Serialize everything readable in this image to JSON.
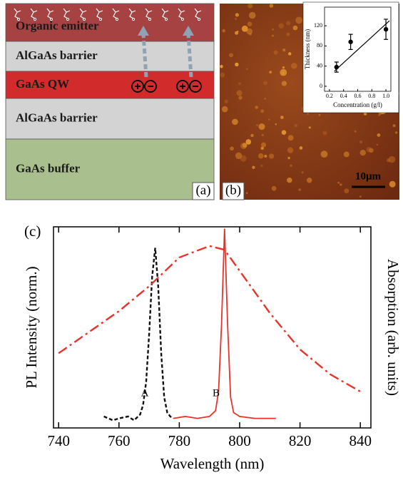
{
  "panel_a": {
    "label": "(a)",
    "layers": [
      {
        "name": "Organic emitter",
        "color": "#a64242"
      },
      {
        "name": "AlGaAs barrier",
        "color": "#d3d3d3"
      },
      {
        "name": "GaAs QW",
        "color": "#d22b2b"
      },
      {
        "name": "AlGaAs barrier",
        "color": "#d3d3d3"
      },
      {
        "name": "GaAs buffer",
        "color": "#a9c08e"
      }
    ]
  },
  "panel_b": {
    "label": "(b)",
    "scale_bar": "10μm"
  },
  "chart_data": [
    {
      "type": "errorbar",
      "ylabel": "Thickness (nm)",
      "xlabel": "Concentration (g/l)",
      "x": [
        0.3,
        0.5,
        1.0
      ],
      "values": [
        38,
        88,
        113
      ],
      "errors": [
        10,
        15,
        20
      ],
      "fit": {
        "x": [
          0.27,
          1.05
        ],
        "values": [
          30,
          130
        ]
      },
      "xlim": [
        0.13,
        1.07
      ],
      "ylim": [
        -10,
        157
      ],
      "xticks": [
        0.2,
        0.4,
        0.6,
        0.8,
        {
          "value": 1.0,
          "label": "1.0"
        }
      ],
      "yticks": [
        0,
        40,
        80,
        120
      ]
    },
    {
      "type": "line",
      "panel_label": "(c)",
      "xlabel": "Wavelength (nm)",
      "ylabel": "PL Intensity (norm.)",
      "y2label": "Absorption (arb. units)",
      "xlim": [
        738.3,
        843.5
      ],
      "ylim": [
        -0.04,
        1.01
      ],
      "y2lim": [
        -0.04,
        1.01
      ],
      "xticks": [
        740,
        760,
        780,
        800,
        820,
        840
      ],
      "annotations": [
        "A",
        "B"
      ],
      "series": [
        {
          "color": "#111111",
          "style": "dashed",
          "x": [
            755,
            758,
            760,
            763,
            765,
            767,
            768,
            769,
            770,
            771,
            772,
            773,
            774,
            775,
            776,
            777,
            778
          ],
          "values": [
            0.02,
            0,
            0.01,
            0.02,
            0,
            0.03,
            0.08,
            0.2,
            0.45,
            0.75,
            0.9,
            0.7,
            0.35,
            0.12,
            0.04,
            0.02,
            0.01
          ]
        },
        {
          "color": "#e8322a",
          "style": "solid",
          "x": [
            778,
            782,
            786,
            790,
            792,
            793,
            794,
            795,
            796,
            797,
            798,
            800,
            805,
            812
          ],
          "values": [
            0.01,
            0.02,
            0.01,
            0.02,
            0.05,
            0.15,
            0.5,
            1.0,
            0.5,
            0.12,
            0.04,
            0.02,
            0.01,
            0.01
          ]
        },
        {
          "color": "#e8322a",
          "style": "dashdot",
          "axis": "y2",
          "x": [
            740,
            760,
            770,
            780,
            790,
            795,
            800,
            810,
            820,
            830,
            840
          ],
          "values": [
            0.35,
            0.57,
            0.7,
            0.85,
            0.91,
            0.89,
            0.78,
            0.56,
            0.37,
            0.24,
            0.15
          ]
        }
      ]
    }
  ]
}
